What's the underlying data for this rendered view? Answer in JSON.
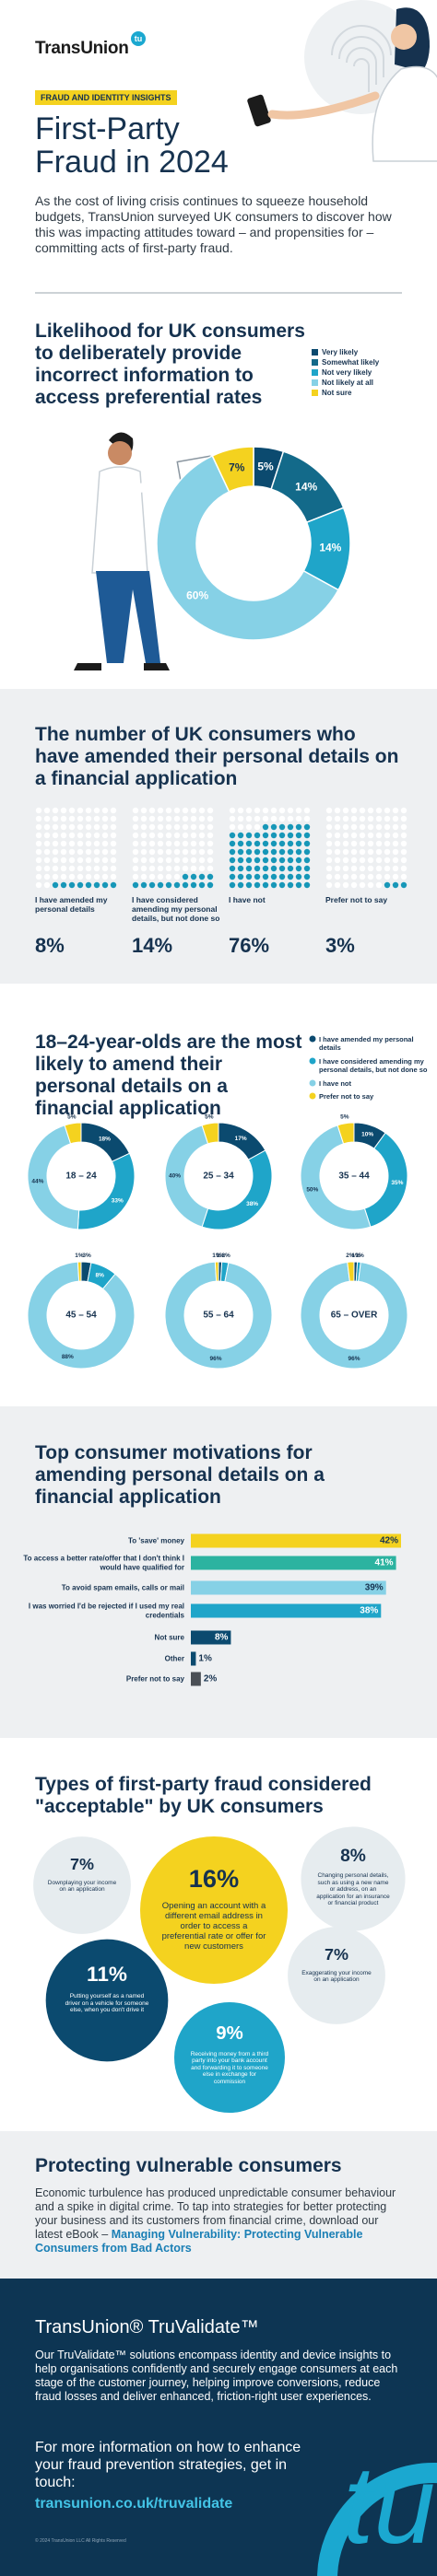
{
  "header": {
    "logo": "TransUnion",
    "logo_mark": "tu",
    "tag": "FRAUD AND IDENTITY INSIGHTS",
    "title": "First-Party Fraud in 2024",
    "intro": "As the cost of living crisis continues to squeeze household budgets, TransUnion surveyed UK consumers to discover how this was impacting attitudes toward – and propensities for – committing acts of first-party fraud."
  },
  "chart_data": [
    {
      "type": "pie",
      "title": "Likelihood for UK consumers to deliberately provide incorrect information to access preferential rates",
      "categories": [
        "Very likely",
        "Somewhat likely",
        "Not very likely",
        "Not likely at all",
        "Not sure"
      ],
      "values": [
        5,
        14,
        14,
        60,
        7
      ],
      "value_labels": [
        "5%",
        "14%",
        "14%",
        "60%",
        "7%"
      ],
      "colors": [
        "#0b4a6f",
        "#136a8a",
        "#1fa5c9",
        "#86d1e6",
        "#f4d21f"
      ]
    },
    {
      "type": "waffle",
      "title": "The number of UK consumers who have amended their personal details on a financial application",
      "categories": [
        "I have amended my personal details",
        "I have considered amending my personal details, but not done so",
        "I have not",
        "Prefer not to say"
      ],
      "values": [
        8,
        14,
        76,
        3
      ],
      "value_labels": [
        "8%",
        "14%",
        "76%",
        "3%"
      ],
      "color": "#1797b8",
      "empty_color": "#ffffff"
    },
    {
      "type": "donut",
      "title": "18–24-year-olds are the most likely to amend their personal details on a financial application",
      "categories": [
        "18 – 24",
        "25 – 34",
        "35 – 44",
        "45 – 54",
        "55 – 64",
        "65 – OVER"
      ],
      "series": [
        {
          "name": "I have amended my personal details",
          "color": "#0b4a6f",
          "values": [
            18,
            17,
            10,
            3,
            1,
            1
          ],
          "value_labels": [
            "18%",
            "17%",
            "10%",
            "3%",
            "1%",
            "1%"
          ]
        },
        {
          "name": "I have considered amending my personal details, but not done so",
          "color": "#1fa5c9",
          "values": [
            33,
            38,
            35,
            8,
            2,
            1
          ],
          "value_labels": [
            "33%",
            "38%",
            "35%",
            "8%",
            "2%",
            "1%"
          ]
        },
        {
          "name": "I have not",
          "color": "#86d1e6",
          "values": [
            44,
            40,
            50,
            88,
            96,
            96
          ],
          "value_labels": [
            "44%",
            "40%",
            "50%",
            "88%",
            "96%",
            "96%"
          ]
        },
        {
          "name": "Prefer not to say",
          "color": "#f4d21f",
          "values": [
            5,
            5,
            5,
            1,
            1,
            2
          ],
          "value_labels": [
            "5%",
            "5%",
            "5%",
            "1%",
            "1%",
            "2%"
          ]
        }
      ]
    },
    {
      "type": "hbar",
      "title": "Top consumer motivations for amending personal details on a financial application",
      "categories": [
        "To 'save' money",
        "To access a better rate/offer that I don't think I would have qualified for",
        "To avoid spam emails, calls or mail",
        "I was worried I'd be rejected if I used my real credentials",
        "Not sure",
        "Other",
        "Prefer not to say"
      ],
      "values": [
        42,
        41,
        39,
        38,
        8,
        1,
        2
      ],
      "value_labels": [
        "42%",
        "41%",
        "39%",
        "38%",
        "8%",
        "1%",
        "2%"
      ],
      "colors": [
        "#f4d21f",
        "#2cb3a0",
        "#86d1e6",
        "#1fa5c9",
        "#0b4a6f",
        "#0b4a6f",
        "#4a4f55"
      ]
    },
    {
      "type": "bubble",
      "title": "Types of first-party fraud considered \"acceptable\" by UK consumers",
      "categories": [
        "Downplaying your income on an application",
        "Opening an account with a different email address in order to access a preferential rate or offer for new customers",
        "Changing personal details, such as using a new name or address, on an application for an insurance or financial product",
        "Putting yourself as a named driver on a vehicle for someone else, when you don't drive it",
        "Receiving money from a third party into your bank account and forwarding it to someone else in exchange for commission",
        "Exaggerating your income on an application"
      ],
      "values": [
        7,
        16,
        8,
        11,
        9,
        7
      ],
      "value_labels": [
        "7%",
        "16%",
        "8%",
        "11%",
        "9%",
        "7%"
      ],
      "colors": [
        "#e6ecef",
        "#f4d21f",
        "#e6ecef",
        "#0b4a6f",
        "#1fa5c9",
        "#e6ecef"
      ]
    }
  ],
  "vulnerable": {
    "title": "Protecting vulnerable consumers",
    "text": "Economic turbulence has produced unpredictable consumer behaviour and a spike in digital crime. To tap into strategies for better protecting your business and its customers from financial crime, download our latest eBook – ",
    "link": "Managing Vulnerability: Protecting Vulnerable Consumers from Bad Actors"
  },
  "footer": {
    "title": "TransUnion® TruValidate™",
    "text": "Our TruValidate™ solutions encompass identity and device insights to help organisations confidently and securely engage consumers at each stage of the customer journey, helping improve conversions, reduce fraud losses and deliver enhanced, friction-right user experiences.",
    "cta": "For more information on how to enhance your fraud prevention strategies, get in touch:",
    "link": "transunion.co.uk/truvalidate",
    "legal": "© 2024 TransUnion LLC All Rights Reserved",
    "logo_mark": "tu"
  }
}
